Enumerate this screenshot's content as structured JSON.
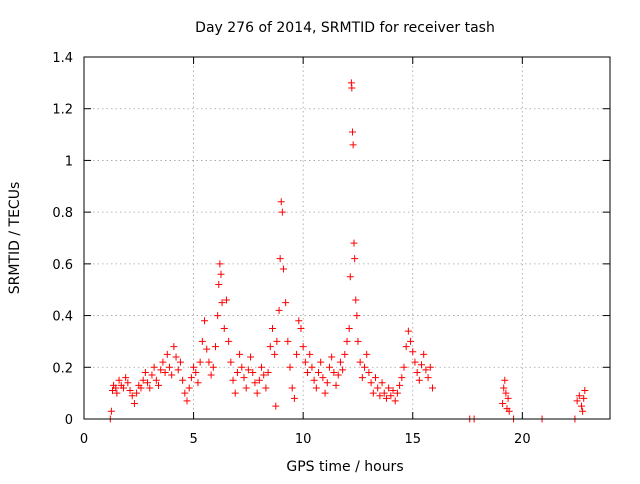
{
  "chart_data": {
    "type": "scatter",
    "title": "Day 276 of 2014, SRMTID for receiver tash",
    "xlabel": "GPS time / hours",
    "ylabel": "SRMTID / TECUs",
    "xlim": [
      0,
      24
    ],
    "ylim": [
      0,
      1.4
    ],
    "grid": true,
    "marker": "+",
    "color": "#ff0000",
    "x_ticks": [
      0,
      5,
      10,
      15,
      20
    ],
    "y_ticks": [
      0,
      0.2,
      0.4,
      0.6,
      0.8,
      1,
      1.2,
      1.4
    ],
    "x_tick_labels": [
      "0",
      "5",
      "10",
      "15",
      "20"
    ],
    "y_tick_labels": [
      "0",
      "0.2",
      "0.4",
      "0.6",
      "0.8",
      "1",
      "1.2",
      "1.4"
    ],
    "series": [
      {
        "name": "SRMTID",
        "points": [
          [
            1.2,
            0.0
          ],
          [
            1.25,
            0.03
          ],
          [
            1.3,
            0.11
          ],
          [
            1.35,
            0.13
          ],
          [
            1.45,
            0.12
          ],
          [
            1.5,
            0.1
          ],
          [
            1.6,
            0.15
          ],
          [
            1.7,
            0.13
          ],
          [
            1.8,
            0.12
          ],
          [
            1.9,
            0.16
          ],
          [
            2.0,
            0.14
          ],
          [
            2.1,
            0.11
          ],
          [
            2.2,
            0.09
          ],
          [
            2.3,
            0.06
          ],
          [
            2.4,
            0.1
          ],
          [
            2.5,
            0.13
          ],
          [
            2.6,
            0.12
          ],
          [
            2.7,
            0.15
          ],
          [
            2.8,
            0.18
          ],
          [
            2.9,
            0.14
          ],
          [
            3.0,
            0.12
          ],
          [
            3.1,
            0.17
          ],
          [
            3.2,
            0.2
          ],
          [
            3.3,
            0.15
          ],
          [
            3.4,
            0.13
          ],
          [
            3.5,
            0.19
          ],
          [
            3.6,
            0.22
          ],
          [
            3.7,
            0.18
          ],
          [
            3.8,
            0.25
          ],
          [
            3.9,
            0.2
          ],
          [
            4.0,
            0.17
          ],
          [
            4.1,
            0.28
          ],
          [
            4.2,
            0.24
          ],
          [
            4.3,
            0.19
          ],
          [
            4.4,
            0.22
          ],
          [
            4.5,
            0.15
          ],
          [
            4.6,
            0.1
          ],
          [
            4.7,
            0.07
          ],
          [
            4.8,
            0.12
          ],
          [
            4.9,
            0.16
          ],
          [
            5.0,
            0.2
          ],
          [
            5.1,
            0.18
          ],
          [
            5.2,
            0.14
          ],
          [
            5.3,
            0.22
          ],
          [
            5.4,
            0.3
          ],
          [
            5.5,
            0.38
          ],
          [
            5.6,
            0.27
          ],
          [
            5.7,
            0.22
          ],
          [
            5.8,
            0.17
          ],
          [
            5.9,
            0.2
          ],
          [
            6.0,
            0.28
          ],
          [
            6.1,
            0.4
          ],
          [
            6.15,
            0.52
          ],
          [
            6.2,
            0.6
          ],
          [
            6.25,
            0.56
          ],
          [
            6.3,
            0.45
          ],
          [
            6.4,
            0.35
          ],
          [
            6.5,
            0.46
          ],
          [
            6.6,
            0.3
          ],
          [
            6.7,
            0.22
          ],
          [
            6.8,
            0.15
          ],
          [
            6.9,
            0.1
          ],
          [
            7.0,
            0.18
          ],
          [
            7.1,
            0.25
          ],
          [
            7.2,
            0.2
          ],
          [
            7.3,
            0.16
          ],
          [
            7.4,
            0.12
          ],
          [
            7.5,
            0.19
          ],
          [
            7.6,
            0.24
          ],
          [
            7.7,
            0.18
          ],
          [
            7.8,
            0.14
          ],
          [
            7.9,
            0.1
          ],
          [
            8.0,
            0.15
          ],
          [
            8.1,
            0.2
          ],
          [
            8.2,
            0.17
          ],
          [
            8.3,
            0.12
          ],
          [
            8.4,
            0.18
          ],
          [
            8.5,
            0.28
          ],
          [
            8.6,
            0.35
          ],
          [
            8.7,
            0.25
          ],
          [
            8.75,
            0.05
          ],
          [
            8.8,
            0.3
          ],
          [
            8.9,
            0.42
          ],
          [
            8.95,
            0.62
          ],
          [
            9.0,
            0.84
          ],
          [
            9.05,
            0.8
          ],
          [
            9.1,
            0.58
          ],
          [
            9.2,
            0.45
          ],
          [
            9.3,
            0.3
          ],
          [
            9.4,
            0.2
          ],
          [
            9.5,
            0.12
          ],
          [
            9.6,
            0.08
          ],
          [
            9.7,
            0.25
          ],
          [
            9.8,
            0.38
          ],
          [
            9.9,
            0.35
          ],
          [
            10.0,
            0.28
          ],
          [
            10.1,
            0.22
          ],
          [
            10.2,
            0.18
          ],
          [
            10.3,
            0.25
          ],
          [
            10.4,
            0.2
          ],
          [
            10.5,
            0.15
          ],
          [
            10.6,
            0.12
          ],
          [
            10.7,
            0.18
          ],
          [
            10.8,
            0.22
          ],
          [
            10.9,
            0.16
          ],
          [
            11.0,
            0.1
          ],
          [
            11.1,
            0.14
          ],
          [
            11.2,
            0.2
          ],
          [
            11.3,
            0.24
          ],
          [
            11.4,
            0.18
          ],
          [
            11.5,
            0.13
          ],
          [
            11.6,
            0.17
          ],
          [
            11.7,
            0.22
          ],
          [
            11.8,
            0.19
          ],
          [
            11.9,
            0.25
          ],
          [
            12.0,
            0.3
          ],
          [
            12.1,
            0.35
          ],
          [
            12.15,
            0.55
          ],
          [
            12.2,
            1.3
          ],
          [
            12.22,
            1.28
          ],
          [
            12.25,
            1.11
          ],
          [
            12.28,
            1.06
          ],
          [
            12.32,
            0.68
          ],
          [
            12.35,
            0.62
          ],
          [
            12.4,
            0.46
          ],
          [
            12.45,
            0.4
          ],
          [
            12.5,
            0.3
          ],
          [
            12.6,
            0.22
          ],
          [
            12.7,
            0.16
          ],
          [
            12.8,
            0.2
          ],
          [
            12.9,
            0.25
          ],
          [
            13.0,
            0.18
          ],
          [
            13.1,
            0.14
          ],
          [
            13.2,
            0.1
          ],
          [
            13.3,
            0.16
          ],
          [
            13.4,
            0.12
          ],
          [
            13.5,
            0.09
          ],
          [
            13.6,
            0.14
          ],
          [
            13.7,
            0.1
          ],
          [
            13.8,
            0.08
          ],
          [
            13.9,
            0.12
          ],
          [
            14.0,
            0.09
          ],
          [
            14.1,
            0.11
          ],
          [
            14.2,
            0.07
          ],
          [
            14.3,
            0.1
          ],
          [
            14.4,
            0.13
          ],
          [
            14.5,
            0.16
          ],
          [
            14.6,
            0.2
          ],
          [
            14.7,
            0.28
          ],
          [
            14.8,
            0.34
          ],
          [
            14.9,
            0.3
          ],
          [
            15.0,
            0.26
          ],
          [
            15.1,
            0.22
          ],
          [
            15.2,
            0.18
          ],
          [
            15.3,
            0.15
          ],
          [
            15.4,
            0.21
          ],
          [
            15.5,
            0.25
          ],
          [
            15.6,
            0.19
          ],
          [
            15.7,
            0.16
          ],
          [
            15.8,
            0.2
          ],
          [
            15.9,
            0.12
          ],
          [
            17.6,
            0.0
          ],
          [
            17.8,
            0.0
          ],
          [
            19.1,
            0.06
          ],
          [
            19.15,
            0.12
          ],
          [
            19.2,
            0.15
          ],
          [
            19.25,
            0.1
          ],
          [
            19.3,
            0.04
          ],
          [
            19.35,
            0.08
          ],
          [
            19.4,
            0.03
          ],
          [
            19.6,
            0.0
          ],
          [
            20.9,
            0.0
          ],
          [
            22.4,
            0.0
          ],
          [
            22.5,
            0.07
          ],
          [
            22.6,
            0.09
          ],
          [
            22.7,
            0.05
          ],
          [
            22.75,
            0.03
          ],
          [
            22.8,
            0.08
          ],
          [
            22.85,
            0.11
          ]
        ]
      }
    ]
  }
}
